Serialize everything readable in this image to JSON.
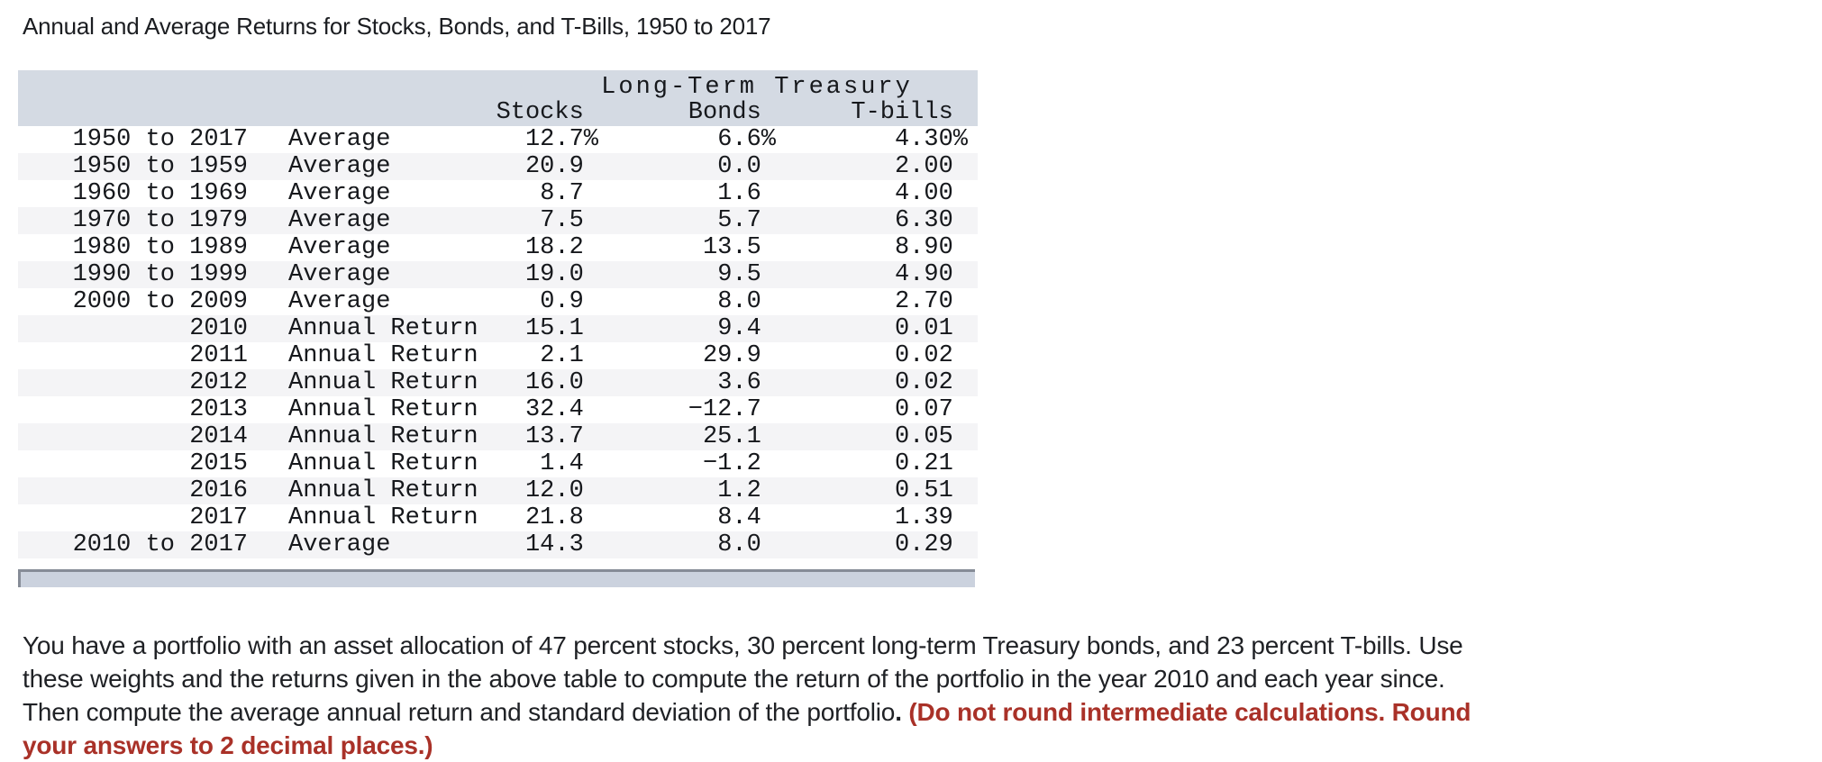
{
  "title": "Annual and Average Returns for Stocks, Bonds, and T-Bills, 1950 to 2017",
  "table": {
    "group_header": "Long-Term Treasury",
    "columns": {
      "stocks": "Stocks ",
      "bonds": "Bonds ",
      "tbills": "T-bills "
    },
    "rows": [
      {
        "period": "1950 to 2017",
        "label": "Average",
        "stocks": "12.7%",
        "bonds": "6.6%",
        "tbills": "4.30%"
      },
      {
        "period": "1950 to 1959",
        "label": "Average",
        "stocks": "20.9 ",
        "bonds": "0.0 ",
        "tbills": "2.00 "
      },
      {
        "period": "1960 to 1969",
        "label": "Average",
        "stocks": "8.7 ",
        "bonds": "1.6 ",
        "tbills": "4.00 "
      },
      {
        "period": "1970 to 1979",
        "label": "Average",
        "stocks": "7.5 ",
        "bonds": "5.7 ",
        "tbills": "6.30 "
      },
      {
        "period": "1980 to 1989",
        "label": "Average",
        "stocks": "18.2 ",
        "bonds": "13.5 ",
        "tbills": "8.90 "
      },
      {
        "period": "1990 to 1999",
        "label": "Average",
        "stocks": "19.0 ",
        "bonds": "9.5 ",
        "tbills": "4.90 "
      },
      {
        "period": "2000 to 2009",
        "label": "Average",
        "stocks": "0.9 ",
        "bonds": "8.0 ",
        "tbills": "2.70 "
      },
      {
        "period": "2010",
        "label": "Annual Return",
        "stocks": "15.1 ",
        "bonds": "9.4 ",
        "tbills": "0.01 "
      },
      {
        "period": "2011",
        "label": "Annual Return",
        "stocks": "2.1 ",
        "bonds": "29.9 ",
        "tbills": "0.02 "
      },
      {
        "period": "2012",
        "label": "Annual Return",
        "stocks": "16.0 ",
        "bonds": "3.6 ",
        "tbills": "0.02 "
      },
      {
        "period": "2013",
        "label": "Annual Return",
        "stocks": "32.4 ",
        "bonds": "−12.7 ",
        "tbills": "0.07 "
      },
      {
        "period": "2014",
        "label": "Annual Return",
        "stocks": "13.7 ",
        "bonds": "25.1 ",
        "tbills": "0.05 "
      },
      {
        "period": "2015",
        "label": "Annual Return",
        "stocks": "1.4 ",
        "bonds": "−1.2 ",
        "tbills": "0.21 "
      },
      {
        "period": "2016",
        "label": "Annual Return",
        "stocks": "12.0 ",
        "bonds": "1.2 ",
        "tbills": "0.51 "
      },
      {
        "period": "2017",
        "label": "Annual Return",
        "stocks": "21.8 ",
        "bonds": "8.4 ",
        "tbills": "1.39 "
      },
      {
        "period": "2010 to 2017",
        "label": "Average",
        "stocks": "14.3 ",
        "bonds": "8.0 ",
        "tbills": "0.29 "
      }
    ]
  },
  "question": {
    "l1": "You have a portfolio with an asset allocation of 47 percent stocks, 30 percent long-term Treasury bonds, and 23 percent T-bills. Use",
    "l2": "these weights and the returns given in the above table to compute the return of the portfolio in the year 2010 and each year since.",
    "l3_normal": "Then compute the average annual return and standard deviation of the portfolio",
    "l3_bold_black": ".",
    "l3_bold_red": " (Do not round intermediate calculations. Round",
    "l4_bold_red": "your answers to 2 decimal places.)"
  },
  "colors": {
    "header_bg": "#d4dae3",
    "stripe": "#f4f4f6",
    "accent_red": "#a93128",
    "scroll_track": "#cbd2de",
    "scroll_border": "#868c97"
  }
}
